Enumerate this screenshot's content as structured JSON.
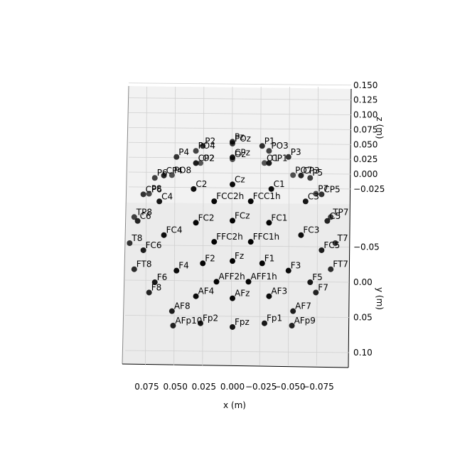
{
  "chart_data": {
    "type": "scatter3d",
    "xlabel": "x (m)",
    "ylabel": "y (m)",
    "zlabel": "z (m)",
    "xticks": [
      {
        "value": 0.075,
        "label": "0.075"
      },
      {
        "value": 0.05,
        "label": "0.050"
      },
      0.025,
      {
        "value": 0,
        "label": "0.000"
      },
      {
        "value": -0.025,
        "label": "−0.025"
      },
      {
        "value": -0.05,
        "label": "−0.050"
      },
      {
        "value": -0.075,
        "label": "−0.075"
      }
    ],
    "yticks": [
      {
        "value": -0.05,
        "label": "−0.05"
      },
      {
        "value": 0,
        "label": "0.00"
      },
      0.05,
      {
        "value": 0.1,
        "label": "0.10"
      }
    ],
    "zticks": [
      {
        "value": -0.025,
        "label": "−0.025"
      },
      {
        "value": 0,
        "label": "0.000"
      },
      0.025,
      {
        "value": 0.05,
        "label": "0.050"
      },
      0.075,
      {
        "value": 0.1,
        "label": "0.100"
      },
      0.125,
      {
        "value": 0.15,
        "label": "0.150"
      }
    ],
    "color": "#000000",
    "electrodes": [
      {
        "name": "Cz",
        "x": 0,
        "y": 0,
        "z": 0.09
      },
      {
        "name": "FCz",
        "x": 0,
        "y": 0.034,
        "z": 0.083
      },
      {
        "name": "Fz",
        "x": 0,
        "y": 0.064,
        "z": 0.064
      },
      {
        "name": "AFz",
        "x": 0,
        "y": 0.083,
        "z": 0.034
      },
      {
        "name": "Fpz",
        "x": 0,
        "y": 0.09,
        "z": 0
      },
      {
        "name": "CPz",
        "x": 0,
        "y": -0.034,
        "z": 0.083
      },
      {
        "name": "Pz",
        "x": 0,
        "y": -0.064,
        "z": 0.064
      },
      {
        "name": "POz",
        "x": 0,
        "y": -0.083,
        "z": 0.034
      },
      {
        "name": "Oz",
        "x": 0,
        "y": -0.09,
        "z": 0
      },
      {
        "name": "C1",
        "x": -0.034,
        "y": 0,
        "z": 0.083
      },
      {
        "name": "C2",
        "x": 0.034,
        "y": 0,
        "z": 0.083
      },
      {
        "name": "C3",
        "x": -0.064,
        "y": 0,
        "z": 0.064
      },
      {
        "name": "C4",
        "x": 0.064,
        "y": 0,
        "z": 0.064
      },
      {
        "name": "C5",
        "x": -0.083,
        "y": 0,
        "z": 0.034
      },
      {
        "name": "C6",
        "x": 0.083,
        "y": 0,
        "z": 0.034
      },
      {
        "name": "T7",
        "x": -0.09,
        "y": 0,
        "z": 0
      },
      {
        "name": "T8",
        "x": 0.09,
        "y": 0,
        "z": 0
      },
      {
        "name": "FC1",
        "x": -0.032,
        "y": 0.032,
        "z": 0.077
      },
      {
        "name": "FC2",
        "x": 0.032,
        "y": 0.032,
        "z": 0.077
      },
      {
        "name": "FC3",
        "x": -0.06,
        "y": 0.032,
        "z": 0.058
      },
      {
        "name": "FC4",
        "x": 0.06,
        "y": 0.032,
        "z": 0.058
      },
      {
        "name": "FC5",
        "x": -0.078,
        "y": 0.03,
        "z": 0.032
      },
      {
        "name": "FC6",
        "x": 0.078,
        "y": 0.03,
        "z": 0.032
      },
      {
        "name": "FT7",
        "x": -0.086,
        "y": 0.028,
        "z": 0
      },
      {
        "name": "FT8",
        "x": 0.086,
        "y": 0.028,
        "z": 0
      },
      {
        "name": "F1",
        "x": -0.026,
        "y": 0.063,
        "z": 0.059
      },
      {
        "name": "F2",
        "x": 0.026,
        "y": 0.063,
        "z": 0.059
      },
      {
        "name": "F3",
        "x": -0.049,
        "y": 0.061,
        "z": 0.045
      },
      {
        "name": "F4",
        "x": 0.049,
        "y": 0.061,
        "z": 0.045
      },
      {
        "name": "F5",
        "x": -0.068,
        "y": 0.056,
        "z": 0.02
      },
      {
        "name": "F6",
        "x": 0.068,
        "y": 0.056,
        "z": 0.02
      },
      {
        "name": "F7",
        "x": -0.073,
        "y": 0.053,
        "z": 0
      },
      {
        "name": "F8",
        "x": 0.073,
        "y": 0.053,
        "z": 0
      },
      {
        "name": "AF3",
        "x": -0.032,
        "y": 0.078,
        "z": 0.03
      },
      {
        "name": "AF4",
        "x": 0.032,
        "y": 0.078,
        "z": 0.03
      },
      {
        "name": "AF7",
        "x": -0.053,
        "y": 0.073,
        "z": 0
      },
      {
        "name": "AF8",
        "x": 0.053,
        "y": 0.073,
        "z": 0
      },
      {
        "name": "Fp1",
        "x": -0.028,
        "y": 0.086,
        "z": 0
      },
      {
        "name": "Fp2",
        "x": 0.028,
        "y": 0.086,
        "z": 0
      },
      {
        "name": "AFp9",
        "x": -0.052,
        "y": 0.078,
        "z": -0.015
      },
      {
        "name": "AFp10",
        "x": 0.052,
        "y": 0.078,
        "z": -0.015
      },
      {
        "name": "FFC1h",
        "x": -0.016,
        "y": 0.049,
        "z": 0.072
      },
      {
        "name": "FFC2h",
        "x": 0.016,
        "y": 0.049,
        "z": 0.072
      },
      {
        "name": "FCC1h",
        "x": -0.016,
        "y": 0.016,
        "z": 0.087
      },
      {
        "name": "FCC2h",
        "x": 0.016,
        "y": 0.016,
        "z": 0.087
      },
      {
        "name": "AFF1h",
        "x": -0.014,
        "y": 0.075,
        "z": 0.048
      },
      {
        "name": "AFF2h",
        "x": 0.014,
        "y": 0.075,
        "z": 0.048
      },
      {
        "name": "CP1",
        "x": -0.032,
        "y": -0.032,
        "z": 0.077
      },
      {
        "name": "CP2",
        "x": 0.032,
        "y": -0.032,
        "z": 0.077
      },
      {
        "name": "CP3",
        "x": -0.06,
        "y": -0.032,
        "z": 0.058
      },
      {
        "name": "CP4",
        "x": 0.06,
        "y": -0.032,
        "z": 0.058
      },
      {
        "name": "CP5",
        "x": -0.078,
        "y": -0.03,
        "z": 0.032
      },
      {
        "name": "CP6",
        "x": 0.078,
        "y": -0.03,
        "z": 0.032
      },
      {
        "name": "TP7",
        "x": -0.086,
        "y": -0.028,
        "z": 0
      },
      {
        "name": "TP8",
        "x": 0.086,
        "y": -0.028,
        "z": 0
      },
      {
        "name": "P1",
        "x": -0.026,
        "y": -0.063,
        "z": 0.059
      },
      {
        "name": "P2",
        "x": 0.026,
        "y": -0.063,
        "z": 0.059
      },
      {
        "name": "P3",
        "x": -0.049,
        "y": -0.061,
        "z": 0.045
      },
      {
        "name": "P4",
        "x": 0.049,
        "y": -0.061,
        "z": 0.045
      },
      {
        "name": "P5",
        "x": -0.068,
        "y": -0.056,
        "z": 0.02
      },
      {
        "name": "P6",
        "x": 0.068,
        "y": -0.056,
        "z": 0.02
      },
      {
        "name": "P7",
        "x": -0.073,
        "y": -0.053,
        "z": 0
      },
      {
        "name": "P8",
        "x": 0.073,
        "y": -0.053,
        "z": 0
      },
      {
        "name": "PO3",
        "x": -0.032,
        "y": -0.078,
        "z": 0.03
      },
      {
        "name": "PO4",
        "x": 0.032,
        "y": -0.078,
        "z": 0.03
      },
      {
        "name": "PO7",
        "x": -0.053,
        "y": -0.073,
        "z": 0
      },
      {
        "name": "PO8",
        "x": 0.053,
        "y": -0.073,
        "z": 0
      },
      {
        "name": "O1",
        "x": -0.028,
        "y": -0.086,
        "z": 0
      },
      {
        "name": "O2",
        "x": 0.028,
        "y": -0.086,
        "z": 0
      }
    ]
  }
}
